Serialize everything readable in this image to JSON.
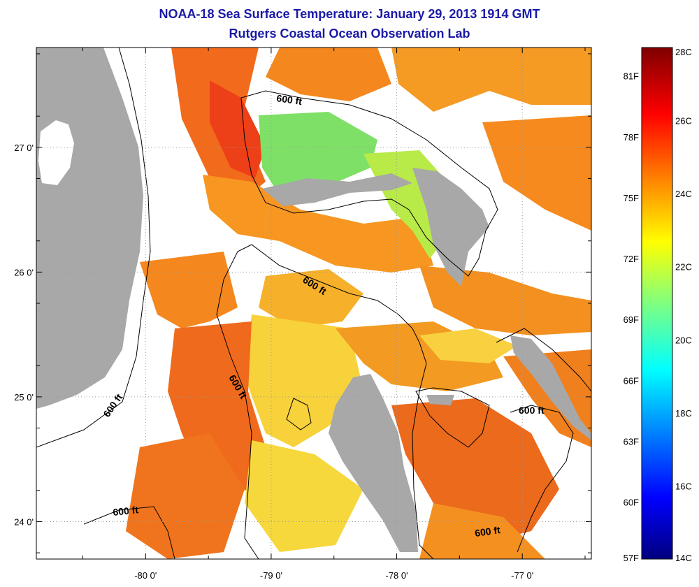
{
  "header": {
    "title": "NOAA-18 Sea Surface Temperature:  January 29, 2013 1914 GMT",
    "subtitle": "Rutgers Coastal Ocean Observation Lab"
  },
  "map": {
    "lon_ticks": [
      {
        "value": -80,
        "label": "-80 0'"
      },
      {
        "value": -79,
        "label": "-79 0'"
      },
      {
        "value": -78,
        "label": "-78 0'"
      },
      {
        "value": -77,
        "label": "-77 0'"
      }
    ],
    "lat_ticks": [
      {
        "value": 27,
        "label": "27 0'"
      },
      {
        "value": 26,
        "label": "26 0'"
      },
      {
        "value": 25,
        "label": "25 0'"
      },
      {
        "value": 24,
        "label": "24 0'"
      }
    ],
    "lon_range": [
      -80.87,
      -76.45
    ],
    "lat_range": [
      23.7,
      27.8
    ],
    "contour_labels": [
      "600 ft",
      "600 ft",
      "600 ft",
      "600 ft",
      "600 ft",
      "600 ft"
    ],
    "colors": {
      "land": "#a8a8a8",
      "grid": "#9a9a9a",
      "coast": "#000000"
    }
  },
  "colorbar": {
    "celsius_labels": [
      "14C",
      "16C",
      "18C",
      "20C",
      "22C",
      "24C",
      "26C",
      "28C"
    ],
    "fahrenheit_labels": [
      "57F",
      "60F",
      "63F",
      "66F",
      "69F",
      "72F",
      "75F",
      "78F",
      "81F"
    ],
    "range_c": [
      14,
      28
    ]
  }
}
